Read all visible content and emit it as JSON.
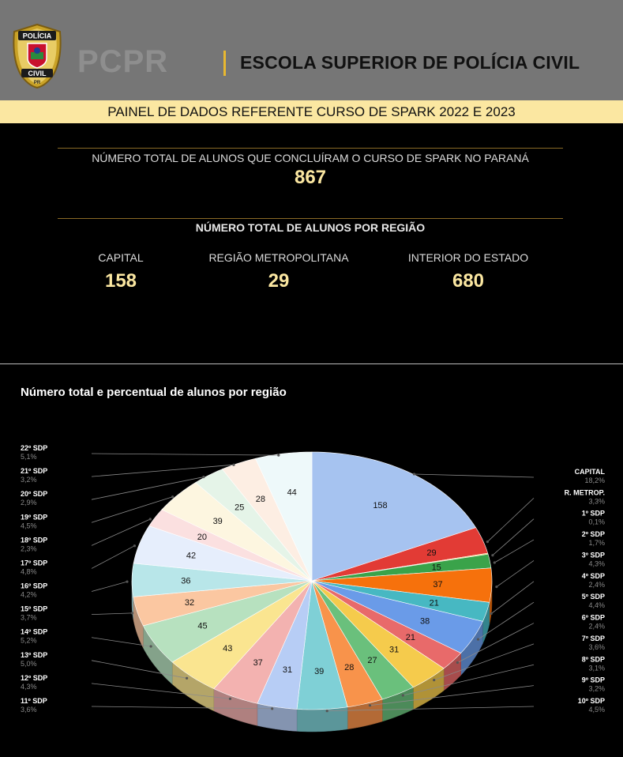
{
  "header": {
    "badge_top": "POLÍCIA",
    "badge_bottom": "CIVIL",
    "badge_state": "PR",
    "brand": "PCPR",
    "school": "ESCOLA SUPERIOR DE POLÍCIA CIVIL"
  },
  "banner": "PAINEL DE DADOS REFERENTE CURSO DE SPARK 2022 E 2023",
  "total": {
    "label": "NÚMERO TOTAL  DE ALUNOS QUE CONCLUÍRAM O CURSO DE SPARK NO PARANÁ",
    "value": "867"
  },
  "region_heading": "NÚMERO TOTAL  DE ALUNOS POR REGIÃO",
  "regions": [
    {
      "label": "CAPITAL",
      "value": "158"
    },
    {
      "label": "REGIÃO METROPOLITANA",
      "value": "29"
    },
    {
      "label": "INTERIOR DO ESTADO",
      "value": "680"
    }
  ],
  "colors": {
    "accent": "#fbe7a1",
    "header_bg": "#767676",
    "separator": "#e8b830"
  },
  "chart_data": {
    "type": "pie",
    "title": "Número total e percentual de alunos por região",
    "slices": [
      {
        "name": "CAPITAL",
        "value": 158,
        "percent": "18,2%",
        "color": "#a6c3f0"
      },
      {
        "name": "R. METROP.",
        "value": 29,
        "percent": "3,3%",
        "color": "#e23b35"
      },
      {
        "name": "1º SDP",
        "value": 1,
        "percent": "0,1%",
        "color": "#f2d44a"
      },
      {
        "name": "2º SDP",
        "value": 15,
        "percent": "1,7%",
        "color": "#3aa34a"
      },
      {
        "name": "3º SDP",
        "value": 37,
        "percent": "4,3%",
        "color": "#f6710c"
      },
      {
        "name": "4º SDP",
        "value": 21,
        "percent": "2,4%",
        "color": "#47b8c2"
      },
      {
        "name": "5º SDP",
        "value": 38,
        "percent": "4,4%",
        "color": "#6a9be8"
      },
      {
        "name": "6º SDP",
        "value": 21,
        "percent": "2,4%",
        "color": "#e86a6a"
      },
      {
        "name": "7º SDP",
        "value": 31,
        "percent": "3,6%",
        "color": "#f5cb4c"
      },
      {
        "name": "8º SDP",
        "value": 27,
        "percent": "3,1%",
        "color": "#6ac07c"
      },
      {
        "name": "9º SDP",
        "value": 28,
        "percent": "3,2%",
        "color": "#f8934b"
      },
      {
        "name": "10º SDP",
        "value": 39,
        "percent": "4,5%",
        "color": "#7fd0d6"
      },
      {
        "name": "11º SDP",
        "value": 31,
        "percent": "3,6%",
        "color": "#b7cdf5"
      },
      {
        "name": "12º SDP",
        "value": 37,
        "percent": "4,3%",
        "color": "#f3b2b0"
      },
      {
        "name": "13º SDP",
        "value": 43,
        "percent": "5,0%",
        "color": "#fae590"
      },
      {
        "name": "14º SDP",
        "value": 45,
        "percent": "5,2%",
        "color": "#b7e1bf"
      },
      {
        "name": "15º SDP",
        "value": 32,
        "percent": "3,7%",
        "color": "#fbc7a1"
      },
      {
        "name": "16º SDP",
        "value": 36,
        "percent": "4,2%",
        "color": "#b8e6e9"
      },
      {
        "name": "17º SDP",
        "value": 42,
        "percent": "4,8%",
        "color": "#e6eefc"
      },
      {
        "name": "18º SDP",
        "value": 20,
        "percent": "2,3%",
        "color": "#fbe0e0"
      },
      {
        "name": "19º SDP",
        "value": 39,
        "percent": "4,5%",
        "color": "#fdf6e0"
      },
      {
        "name": "20º SDP",
        "value": 25,
        "percent": "2,9%",
        "color": "#e5f4e8"
      },
      {
        "name": "21º SDP",
        "value": 28,
        "percent": "3,2%",
        "color": "#fdeee3"
      },
      {
        "name": "22º SDP",
        "value": 44,
        "percent": "5,1%",
        "color": "#eef9fa"
      }
    ]
  }
}
